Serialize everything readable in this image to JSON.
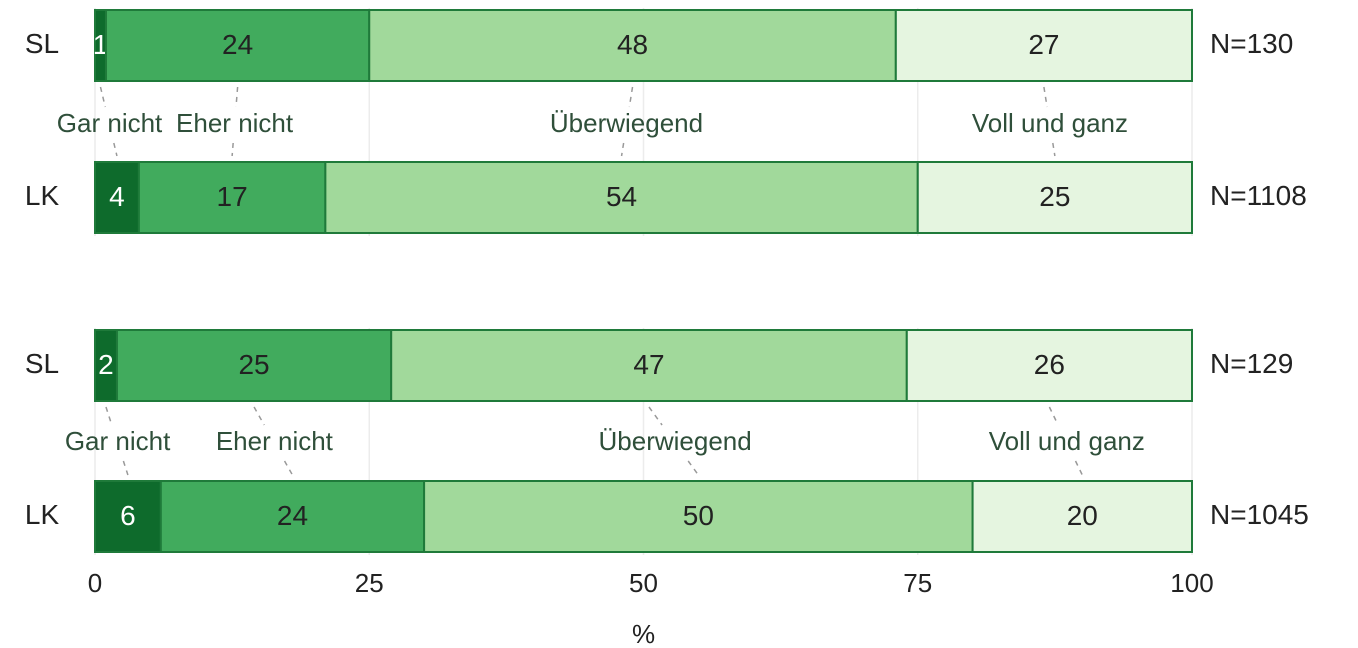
{
  "chart_data": [
    {
      "type": "bar",
      "orientation": "horizontal",
      "stacked": true,
      "categories": [
        "SL",
        "LK"
      ],
      "n_labels": [
        "N=130",
        "N=1108"
      ],
      "series": [
        {
          "name": "Gar nicht",
          "color": "#0e6b2c",
          "values": [
            1,
            4
          ]
        },
        {
          "name": "Eher nicht",
          "color": "#41ab5d",
          "values": [
            24,
            17
          ]
        },
        {
          "name": "Überwiegend",
          "color": "#a1d99b",
          "values": [
            48,
            54
          ]
        },
        {
          "name": "Voll und ganz",
          "color": "#e5f5e0",
          "values": [
            27,
            25
          ]
        }
      ],
      "xlim": [
        0,
        100
      ],
      "xticks": [
        0,
        25,
        50,
        75,
        100
      ],
      "grid": true
    },
    {
      "type": "bar",
      "orientation": "horizontal",
      "stacked": true,
      "categories": [
        "SL",
        "LK"
      ],
      "n_labels": [
        "N=129",
        "N=1045"
      ],
      "series": [
        {
          "name": "Gar nicht",
          "color": "#0e6b2c",
          "values": [
            2,
            6
          ]
        },
        {
          "name": "Eher nicht",
          "color": "#41ab5d",
          "values": [
            25,
            24
          ]
        },
        {
          "name": "Überwiegend",
          "color": "#a1d99b",
          "values": [
            47,
            50
          ]
        },
        {
          "name": "Voll und ganz",
          "color": "#e5f5e0",
          "values": [
            26,
            20
          ]
        }
      ],
      "xlim": [
        0,
        100
      ],
      "xticks": [
        0,
        25,
        50,
        75,
        100
      ],
      "grid": true,
      "xlabel": "%"
    }
  ]
}
